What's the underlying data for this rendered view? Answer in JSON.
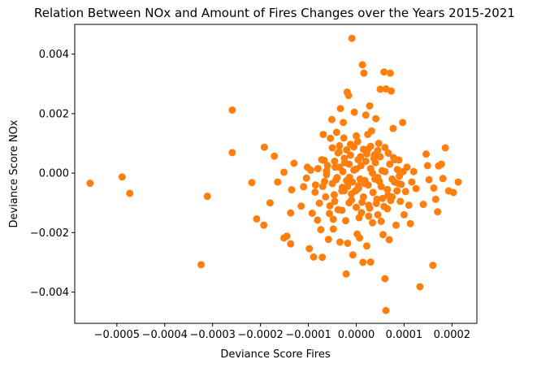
{
  "chart_data": {
    "type": "scatter",
    "title": "Relation Between NOx and Amount of Fires Changes over the Years 2015-2021",
    "xlabel": "Deviance Score Fires",
    "ylabel": "Deviance Score NOx",
    "xlim": [
      -0.000588,
      0.000252
    ],
    "ylim": [
      -0.00505,
      0.005
    ],
    "grid": false,
    "legend": "none",
    "colors": {
      "marker": "#ff7f0e",
      "axes": "#000000",
      "background": "#ffffff"
    },
    "x_ticks": [
      {
        "value": -0.0005,
        "label": "−0.0005"
      },
      {
        "value": -0.0004,
        "label": "−0.0004"
      },
      {
        "value": -0.0003,
        "label": "−0.0003"
      },
      {
        "value": -0.0002,
        "label": "−0.0002"
      },
      {
        "value": -0.0001,
        "label": "−0.0001"
      },
      {
        "value": 0.0,
        "label": "0.0000"
      },
      {
        "value": 0.0001,
        "label": "0.0001"
      },
      {
        "value": 0.0002,
        "label": "0.0002"
      }
    ],
    "y_ticks": [
      {
        "value": -0.004,
        "label": "−0.004"
      },
      {
        "value": -0.002,
        "label": "−0.002"
      },
      {
        "value": 0.0,
        "label": "0.000"
      },
      {
        "value": 0.002,
        "label": "0.002"
      },
      {
        "value": 0.004,
        "label": "0.004"
      }
    ],
    "points": [
      [
        -0.000556,
        -0.00034
      ],
      [
        -0.000489,
        -0.00013
      ],
      [
        -0.000473,
        -0.00068
      ],
      [
        -0.000311,
        -0.00078
      ],
      [
        -0.000259,
        0.00212
      ],
      [
        -0.000259,
        0.00069
      ],
      [
        -0.000324,
        -0.00308
      ],
      [
        -0.000218,
        -0.00032
      ],
      [
        -0.000208,
        -0.00154
      ],
      [
        -0.000192,
        0.00087
      ],
      [
        -0.000193,
        -0.00175
      ],
      [
        -0.00018,
        -0.001
      ],
      [
        -0.000171,
        0.00057
      ],
      [
        -0.000164,
        -0.0003
      ],
      [
        -0.000151,
        3e-05
      ],
      [
        -0.000151,
        -0.00218
      ],
      [
        -0.000145,
        -0.00212
      ],
      [
        -0.000137,
        -0.00238
      ],
      [
        -0.000137,
        -0.00134
      ],
      [
        -0.000135,
        -0.00056
      ],
      [
        -0.00013,
        0.00033
      ],
      [
        -0.000115,
        -0.00111
      ],
      [
        -0.00011,
        -0.00046
      ],
      [
        -0.000104,
        -0.00017
      ],
      [
        -0.000102,
        0.0002
      ],
      [
        -9.8e-05,
        -0.00254
      ],
      [
        -9.2e-05,
        -0.00135
      ],
      [
        -8.9e-05,
        -0.00282
      ],
      [
        -8.6e-05,
        -0.00064
      ],
      [
        -8.1e-05,
        -0.00158
      ],
      [
        -7.7e-05,
        -0.00101
      ],
      [
        -7.4e-05,
        -0.0019
      ],
      [
        -7.1e-05,
        -0.00283
      ],
      [
        -6.9e-05,
        0.0013
      ],
      [
        -6.7e-05,
        0.00043
      ],
      [
        -6.6e-05,
        -0.00028
      ],
      [
        -6.2e-05,
        8e-05
      ],
      [
        -5.8e-05,
        -0.00223
      ],
      [
        -5.6e-05,
        -0.00136
      ],
      [
        -5.4e-05,
        0.00117
      ],
      [
        -5.1e-05,
        0.0018
      ],
      [
        -4.8e-05,
        -0.00188
      ],
      [
        -4.6e-05,
        -0.00073
      ],
      [
        -4.4e-05,
        0.0002
      ],
      [
        -4.1e-05,
        0.00137
      ],
      [
        -3.8e-05,
        -0.00123
      ],
      [
        -3.6e-05,
        0.00071
      ],
      [
        -3.4e-05,
        -0.00232
      ],
      [
        -3.3e-05,
        0.00217
      ],
      [
        -2.9e-05,
        -0.00048
      ],
      [
        -2.7e-05,
        0.0017
      ],
      [
        -2.5e-05,
        -0.00059
      ],
      [
        -2.4e-05,
        0.00035
      ],
      [
        -2.1e-05,
        -0.00339
      ],
      [
        -1.9e-05,
        0.00272
      ],
      [
        -1.8e-05,
        -0.00236
      ],
      [
        -1.6e-05,
        0.00261
      ],
      [
        -1.4e-05,
        -0.00014
      ],
      [
        -1.2e-05,
        0.00097
      ],
      [
        -1e-05,
        -0.00091
      ],
      [
        -9e-06,
        0.00453
      ],
      [
        -7e-06,
        -0.00275
      ],
      [
        -4e-06,
        0.00205
      ],
      [
        -2e-06,
        -0.0006
      ],
      [
        0.0,
        0.00014
      ],
      [
        2e-06,
        -0.00205
      ],
      [
        3e-06,
        0.00106
      ],
      [
        5e-06,
        -0.00042
      ],
      [
        7e-06,
        -0.00218
      ],
      [
        9e-06,
        0.00055
      ],
      [
        1.1e-05,
        -0.00133
      ],
      [
        1.3e-05,
        0.00364
      ],
      [
        1.4e-05,
        -0.003
      ],
      [
        1.6e-05,
        0.00336
      ],
      [
        1.8e-05,
        -0.00025
      ],
      [
        2e-05,
        0.00195
      ],
      [
        2.2e-05,
        -0.00245
      ],
      [
        2.4e-05,
        0.00079
      ],
      [
        2.6e-05,
        -0.00108
      ],
      [
        2.8e-05,
        0.00226
      ],
      [
        3e-05,
        -0.00299
      ],
      [
        3.2e-05,
        0.00142
      ],
      [
        3.4e-05,
        -0.00167
      ],
      [
        3.7e-05,
        0.0005
      ],
      [
        3.9e-05,
        -0.0002
      ],
      [
        4.1e-05,
        0.00183
      ],
      [
        4.3e-05,
        -0.00088
      ],
      [
        4.5e-05,
        -0.0014
      ],
      [
        4.7e-05,
        0.001
      ],
      [
        5e-05,
        0.00282
      ],
      [
        5.2e-05,
        -0.00045
      ],
      [
        5.4e-05,
        8e-05
      ],
      [
        5.6e-05,
        -0.00207
      ],
      [
        5.8e-05,
        0.0034
      ],
      [
        6e-05,
        -0.00355
      ],
      [
        6.2e-05,
        0.00283
      ],
      [
        6.2e-05,
        -0.00462
      ],
      [
        6.5e-05,
        -0.0012
      ],
      [
        6.7e-05,
        0.00067
      ],
      [
        6.9e-05,
        -0.00224
      ],
      [
        7.1e-05,
        0.00336
      ],
      [
        7.3e-05,
        0.00276
      ],
      [
        7.5e-05,
        -0.0008
      ],
      [
        7.7e-05,
        0.0015
      ],
      [
        8e-05,
        -0.0003
      ],
      [
        8.3e-05,
        -0.00175
      ],
      [
        8.6e-05,
        0.00012
      ],
      [
        8.9e-05,
        0.00044
      ],
      [
        9.2e-05,
        -0.00095
      ],
      [
        9.4e-05,
        -0.00038
      ],
      [
        9.7e-05,
        0.0017
      ],
      [
        0.0001,
        -0.0014
      ],
      [
        0.000103,
        -0.00062
      ],
      [
        0.000106,
        0.0002
      ],
      [
        0.00011,
        -0.00108
      ],
      [
        0.000113,
        -0.0017
      ],
      [
        0.000116,
        -0.0003
      ],
      [
        0.00012,
        5e-05
      ],
      [
        0.000125,
        -0.00052
      ],
      [
        0.000133,
        -0.00382
      ],
      [
        0.00014,
        -0.00105
      ],
      [
        0.000146,
        0.00064
      ],
      [
        0.000149,
        0.00025
      ],
      [
        0.000152,
        -0.00022
      ],
      [
        0.00016,
        -0.0031
      ],
      [
        0.000162,
        -0.0005
      ],
      [
        0.000166,
        -0.00088
      ],
      [
        0.000172,
        0.00024
      ],
      [
        0.000178,
        0.0003
      ],
      [
        0.000181,
        -0.00018
      ],
      [
        0.000186,
        0.00085
      ],
      [
        0.000193,
        -0.0006
      ],
      [
        0.000203,
        -0.00065
      ],
      [
        0.000213,
        -0.0003
      ],
      [
        0.00017,
        -0.0013
      ],
      [
        -8e-05,
        0.00015
      ],
      [
        -7e-05,
        -0.00045
      ],
      [
        -6e-05,
        0.00025
      ],
      [
        -5e-05,
        -0.00035
      ],
      [
        -4.5e-05,
        0.0004
      ],
      [
        -4e-05,
        -0.00015
      ],
      [
        -3.5e-05,
        0.0002
      ],
      [
        -3e-05,
        -0.0006
      ],
      [
        -2.5e-05,
        0.0005
      ],
      [
        -2e-05,
        -0.00025
      ],
      [
        -1.5e-05,
        0.0003
      ],
      [
        -1e-05,
        -0.0007
      ],
      [
        -5e-06,
        0.0001
      ],
      [
        5e-06,
        -0.0005
      ],
      [
        1e-05,
        0.00025
      ],
      [
        1.5e-05,
        -0.0008
      ],
      [
        2e-05,
        0.0004
      ],
      [
        2.5e-05,
        -0.0004
      ],
      [
        3e-05,
        0.00015
      ],
      [
        3.5e-05,
        -0.00065
      ],
      [
        4e-05,
        0.00035
      ],
      [
        4.5e-05,
        -0.00015
      ],
      [
        5e-05,
        0.00055
      ],
      [
        5.5e-05,
        -0.00085
      ],
      [
        6e-05,
        5e-05
      ],
      [
        6.5e-05,
        -0.00055
      ],
      [
        7e-05,
        0.0003
      ],
      [
        7.5e-05,
        -0.0002
      ],
      [
        8e-05,
        0.00045
      ],
      [
        8.5e-05,
        -0.0006
      ],
      [
        -5.5e-05,
        -0.0011
      ],
      [
        -4.5e-05,
        -0.00095
      ],
      [
        -3e-05,
        -0.00125
      ],
      [
        -1.5e-05,
        -0.001
      ],
      [
        0.0,
        -0.00115
      ],
      [
        1.2e-05,
        -0.00098
      ],
      [
        2.8e-05,
        -0.00118
      ],
      [
        4.2e-05,
        -0.00102
      ],
      [
        5.8e-05,
        -0.00112
      ],
      [
        7.2e-05,
        -0.00092
      ],
      [
        -5e-05,
        0.00085
      ],
      [
        -3.5e-05,
        0.00092
      ],
      [
        -2e-05,
        0.00078
      ],
      [
        -5e-06,
        0.00088
      ],
      [
        1.5e-05,
        0.0008
      ],
      [
        3e-05,
        0.0009
      ],
      [
        4.5e-05,
        0.00076
      ],
      [
        6e-05,
        0.00086
      ],
      [
        -6.2e-05,
        -5e-05
      ],
      [
        9e-05,
        -0.0001
      ],
      [
        -8e-06,
        -0.0003
      ],
      [
        8e-06,
        -0.0002
      ],
      [
        -1.8e-05,
        -0.00045
      ],
      [
        1.8e-05,
        -0.00035
      ],
      [
        2e-06,
        -0.00055
      ],
      [
        -2.8e-05,
        5e-05
      ],
      [
        3.4e-05,
        0.0
      ],
      [
        -4.2e-05,
        -0.00022
      ],
      [
        4.8e-05,
        -0.00028
      ],
      [
        4e-06,
        0.00045
      ],
      [
        -1.2e-05,
        0.0006
      ],
      [
        2.2e-05,
        0.00065
      ],
      [
        -3.8e-05,
        0.00068
      ],
      [
        3.8e-05,
        0.00062
      ],
      [
        6e-06,
        -0.0015
      ],
      [
        -2.2e-05,
        -0.0016
      ],
      [
        2.6e-05,
        -0.00145
      ],
      [
        -4.8e-05,
        -0.00155
      ],
      [
        5.2e-05,
        -0.00162
      ],
      [
        0.0,
        0.00125
      ],
      [
        -2.6e-05,
        0.00118
      ],
      [
        2.4e-05,
        0.0013
      ],
      [
        -6.4e-05,
        -0.0008
      ],
      [
        6.6e-05,
        -0.00075
      ],
      [
        -7.2e-05,
        0.00045
      ],
      [
        7.8e-05,
        0.00052
      ],
      [
        -8.5e-05,
        -0.0004
      ],
      [
        8.8e-05,
        -0.00035
      ],
      [
        -9.5e-05,
        0.0001
      ],
      [
        9.8e-05,
        5e-05
      ]
    ]
  }
}
